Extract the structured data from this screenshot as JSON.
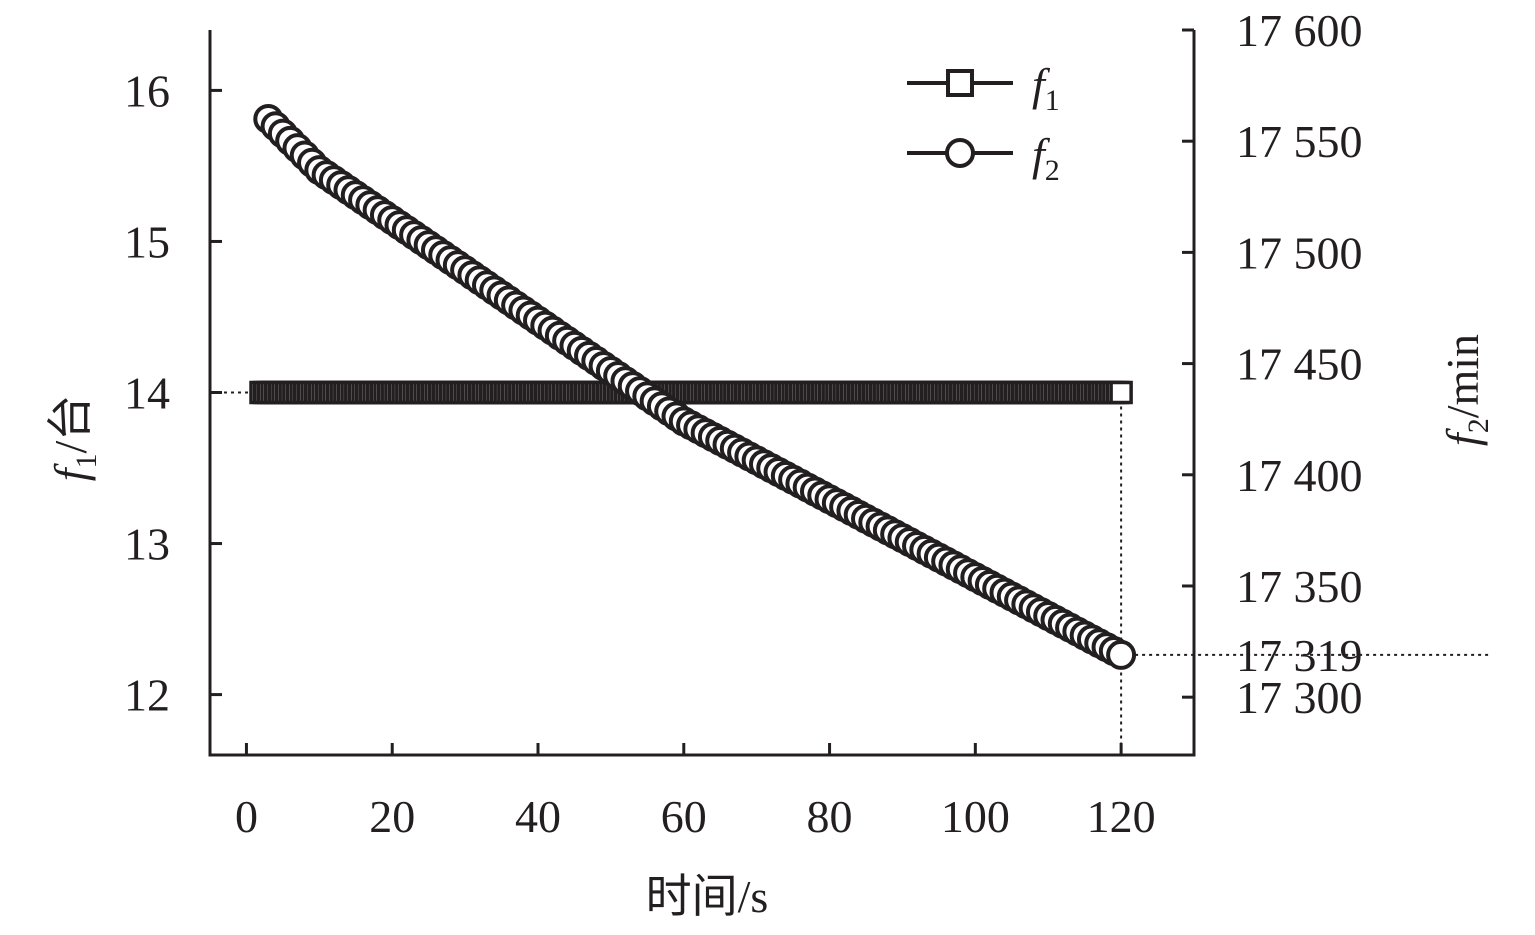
{
  "chart_data": {
    "type": "scatter",
    "xlabel": "时间/s",
    "ylabel_left": {
      "symbol": "f",
      "subscript": "1",
      "unit": "/台"
    },
    "ylabel_right": {
      "symbol": "f",
      "subscript": "2",
      "unit": "/min"
    },
    "x_ticks": [
      "0",
      "20",
      "40",
      "60",
      "80",
      "100",
      "120"
    ],
    "y_left_ticks": [
      "12",
      "13",
      "14",
      "15",
      "16"
    ],
    "y_right_ticks": [
      "17 300",
      "17 319",
      "17 350",
      "17 400",
      "17 450",
      "17 500",
      "17 550",
      "17 600"
    ],
    "xlim": [
      -5,
      130
    ],
    "ylim_left": [
      11.6,
      16.4
    ],
    "ylim_right": [
      17274,
      17600
    ],
    "x_tick_values": [
      0,
      20,
      40,
      60,
      80,
      100,
      120
    ],
    "y_left_tick_values": [
      12,
      13,
      14,
      15,
      16
    ],
    "y_right_tick_values": [
      17300,
      17319,
      17350,
      17400,
      17450,
      17500,
      17550,
      17600
    ],
    "legend_position": "top-right",
    "grid": false,
    "series": [
      {
        "name": "f1",
        "axis": "left",
        "marker": "square",
        "x_start": 2,
        "x_end": 120,
        "x_step": 0.5,
        "y_constant": 14
      },
      {
        "name": "f2",
        "axis": "right",
        "marker": "circle",
        "x_start": 3,
        "x_end": 120,
        "x_step": 1,
        "curve": {
          "x": [
            3,
            10,
            30,
            60,
            120
          ],
          "y": [
            17560,
            17537,
            17492,
            17424,
            17319
          ]
        }
      }
    ],
    "annotations": [
      {
        "text": "f1 = 14 at t = 120 s",
        "dotted_guides": true
      },
      {
        "text": "f2 = 17 319 at t = 120 s",
        "dotted_guides": true
      }
    ]
  },
  "legend": {
    "items": [
      {
        "symbol": "f",
        "subscript": "1"
      },
      {
        "symbol": "f",
        "subscript": "2"
      }
    ]
  },
  "colors": {
    "ink": "#231f20",
    "marker_fill": "#ffffff"
  }
}
